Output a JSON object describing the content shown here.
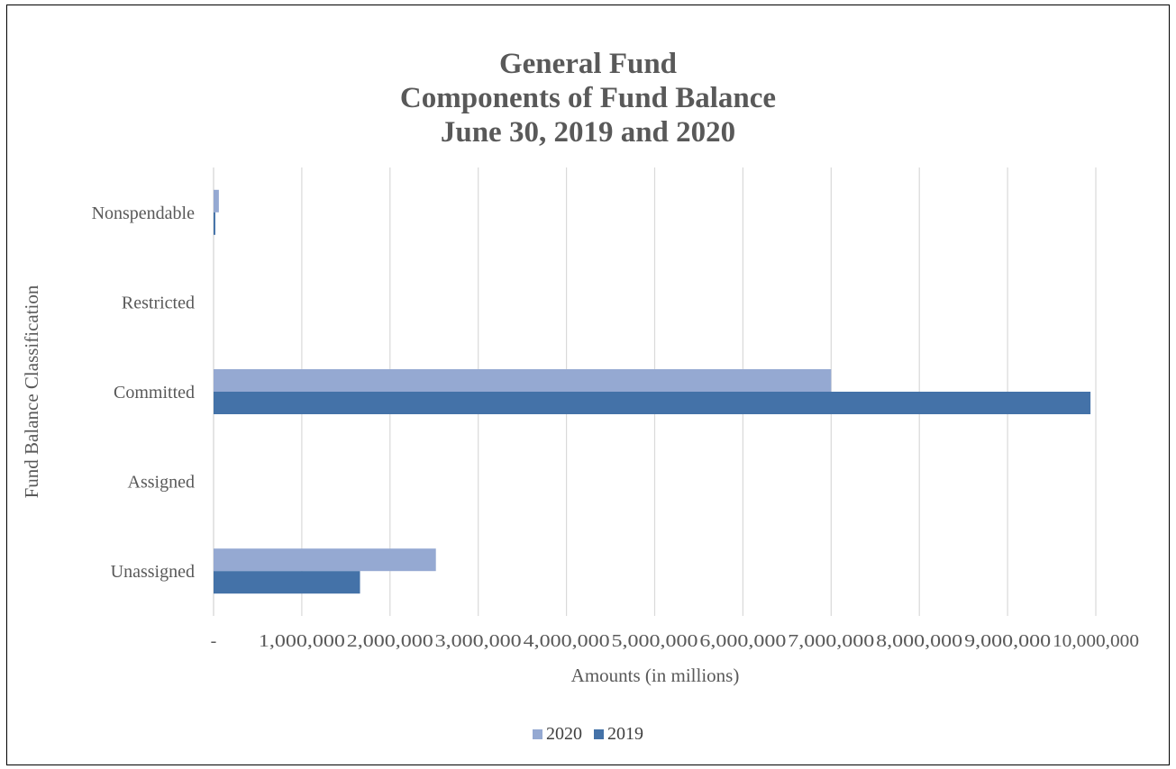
{
  "chart_data": {
    "type": "bar",
    "orientation": "horizontal",
    "title_lines": [
      "General Fund",
      "Components of Fund Balance",
      "June 30, 2019 and 2020"
    ],
    "xlabel": "Amounts (in millions)",
    "ylabel": "Fund Balance Classification",
    "categories": [
      "Nonspendable",
      "Restricted",
      "Committed",
      "Assigned",
      "Unassigned"
    ],
    "series": [
      {
        "name": "2020",
        "color": "#95a9d2",
        "values": [
          60000,
          0,
          7000000,
          0,
          2520000
        ]
      },
      {
        "name": "2019",
        "color": "#4472a8",
        "values": [
          20000,
          0,
          9940000,
          0,
          1660000
        ]
      }
    ],
    "xlim": [
      0,
      10000000
    ],
    "x_ticks": [
      0,
      1000000,
      2000000,
      3000000,
      4000000,
      5000000,
      6000000,
      7000000,
      8000000,
      9000000,
      10000000
    ],
    "x_tick_labels": [
      "-",
      "1,000,000",
      "2,000,000",
      "3,000,000",
      "4,000,000",
      "5,000,000",
      "6,000,000",
      "7,000,000",
      "8,000,000",
      "9,000,000",
      "10,000,000"
    ],
    "grid": "vertical",
    "legend_position": "bottom",
    "colors": {
      "gridline": "#d9d9d9",
      "axis_text": "#595959",
      "title": "#595959"
    }
  }
}
